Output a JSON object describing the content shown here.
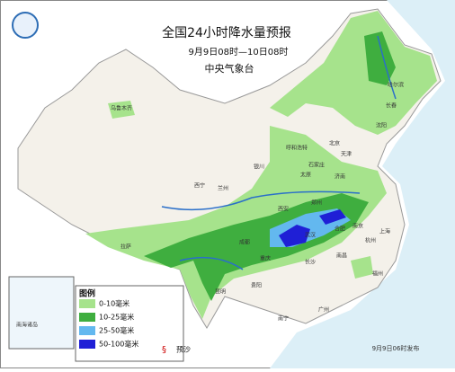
{
  "header": {
    "title": "全国24小时降水量预报",
    "period": "9月9日08时—10日08时",
    "issuer": "中央气象台"
  },
  "legend": {
    "title": "图例",
    "items": [
      {
        "label": "0-10毫米",
        "color": "#a6e38c"
      },
      {
        "label": "10-25毫米",
        "color": "#3fae3f"
      },
      {
        "label": "25-50毫米",
        "color": "#63b8ef"
      },
      {
        "label": "50-100毫米",
        "color": "#1f1fd6"
      }
    ],
    "typhoon": "预沙"
  },
  "cities": [
    "乌鲁木齐",
    "哈尔滨",
    "长春",
    "沈阳",
    "呼和浩特",
    "北京",
    "天津",
    "石家庄",
    "太原",
    "济南",
    "银川",
    "兰州",
    "西宁",
    "西安",
    "郑州",
    "合肥",
    "南京",
    "上海",
    "武汉",
    "杭州",
    "拉萨",
    "成都",
    "重庆",
    "长沙",
    "南昌",
    "福州",
    "贵阳",
    "昆明",
    "南宁",
    "广州"
  ],
  "inset": "南海诸岛",
  "footer": "9月9日06时发布"
}
